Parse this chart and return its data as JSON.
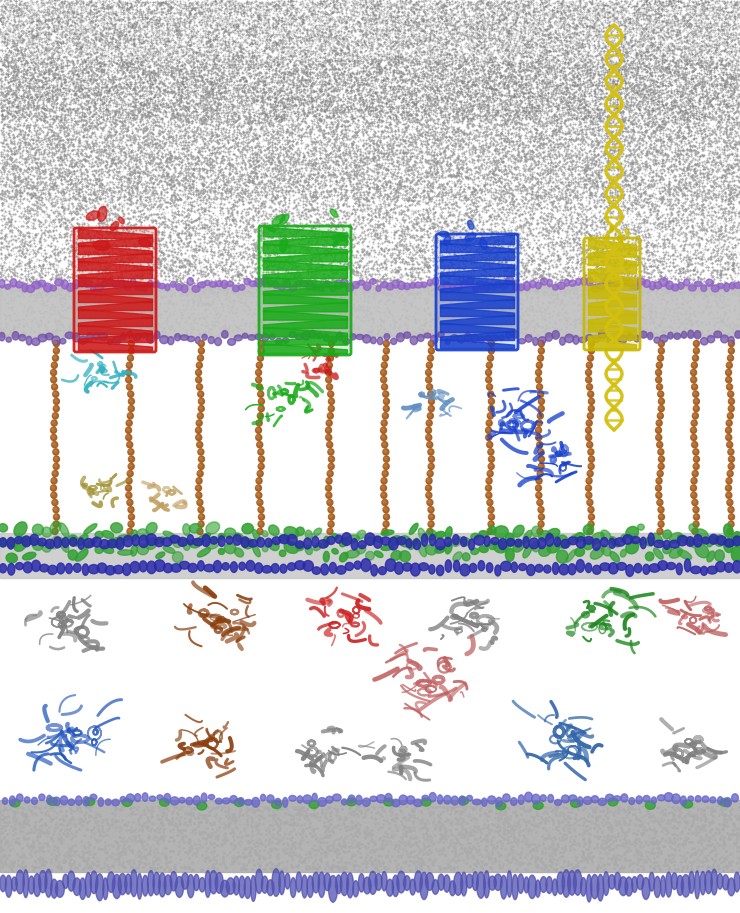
{
  "figsize": [
    7.4,
    9.13
  ],
  "dpi": 100,
  "bg_color": "#ffffff",
  "colors": {
    "lps_grey": "#909090",
    "lps_grey2": "#b0b0b0",
    "outer_mem_grey": "#c0c0c0",
    "purple_heads": "#9060c8",
    "purple_lower": "#7050a8",
    "inner_mem_grey": "#c8c8c8",
    "blue_beads": "#2a2aaa",
    "green_pg": "#30a030",
    "brown_chain": "#a05818",
    "red_barrel": "#cc1818",
    "green_barrel": "#18aa18",
    "blue_barrel": "#1840cc",
    "yellow_barrel": "#c8b800",
    "yellow_helix": "#d4c010",
    "cyan_peri": "#30b0c0",
    "light_blue_peri": "#6090c0",
    "grey_cyto": "#808080",
    "brown_cyto": "#8B4010",
    "dark_red_cyto": "#cc2222",
    "green_cyto": "#208820",
    "pink_cyto": "#c06060",
    "blue_cyto": "#2255bb",
    "steel_cyto": "#3366aa",
    "bot_grey": "#aaaaaa",
    "bot_blue": "#6868c8",
    "bot_blue2": "#5050b0",
    "olive_peri": "#a09030",
    "tan_peri": "#c0a060"
  }
}
